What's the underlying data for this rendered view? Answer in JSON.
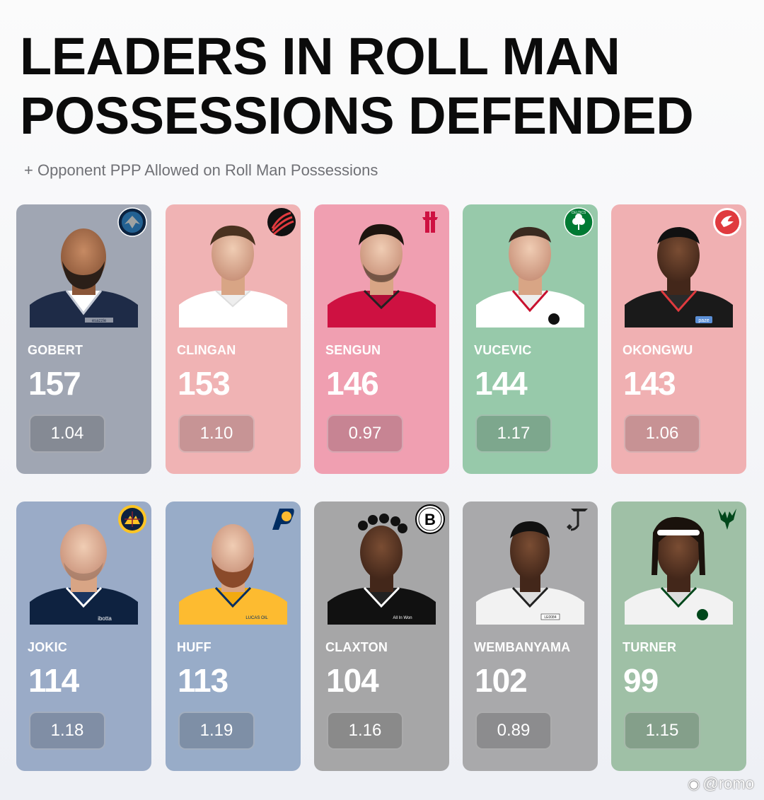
{
  "title": {
    "line1": "LEADERS IN ROLL MAN",
    "line2": "POSSESSIONS DEFENDED"
  },
  "subtitle": "+ Opponent PPP Allowed on Roll Man Possessions",
  "players": [
    {
      "name": "GOBERT",
      "possessions": "157",
      "ppp": "1.04",
      "team_logo": "timberwolves-logo",
      "card_color": "#a0a6b3",
      "jersey_color": "#1e2b47",
      "logo_color": "#236192"
    },
    {
      "name": "CLINGAN",
      "possessions": "153",
      "ppp": "1.10",
      "team_logo": "trail-blazers-logo",
      "card_color": "#f0b3b4",
      "jersey_color": "#ffffff",
      "logo_color": "#e03a3e"
    },
    {
      "name": "SENGUN",
      "possessions": "146",
      "ppp": "0.97",
      "team_logo": "rockets-logo",
      "card_color": "#f09fb1",
      "jersey_color": "#ce1141",
      "logo_color": "#ce1141"
    },
    {
      "name": "VUCEVIC",
      "possessions": "144",
      "ppp": "1.17",
      "team_logo": "celtics-logo",
      "card_color": "#97c9aa",
      "jersey_color": "#ffffff",
      "logo_color": "#007a33"
    },
    {
      "name": "OKONGWU",
      "possessions": "143",
      "ppp": "1.06",
      "team_logo": "hawks-logo",
      "card_color": "#f0b0b2",
      "jersey_color": "#1a1a1a",
      "logo_color": "#e03a3e"
    },
    {
      "name": "JOKIC",
      "possessions": "114",
      "ppp": "1.18",
      "team_logo": "nuggets-logo",
      "card_color": "#9aabc7",
      "jersey_color": "#0e2240",
      "logo_color": "#0e2240"
    },
    {
      "name": "HUFF",
      "possessions": "113",
      "ppp": "1.19",
      "team_logo": "pacers-logo",
      "card_color": "#98acc8",
      "jersey_color": "#fdbb30",
      "logo_color": "#002d62"
    },
    {
      "name": "CLAXTON",
      "possessions": "104",
      "ppp": "1.16",
      "team_logo": "nets-logo",
      "card_color": "#a6a6a7",
      "jersey_color": "#111111",
      "logo_color": "#000000"
    },
    {
      "name": "WEMBANYAMA",
      "possessions": "102",
      "ppp": "0.89",
      "team_logo": "spurs-logo",
      "card_color": "#a9a9ab",
      "jersey_color": "#f2f2f2",
      "logo_color": "#222222"
    },
    {
      "name": "TURNER",
      "possessions": "99",
      "ppp": "1.15",
      "team_logo": "bucks-logo",
      "card_color": "#9fc0a6",
      "jersey_color": "#f2f2f2",
      "logo_color": "#00471b"
    }
  ],
  "logo_text": {
    "celtics": "CELTICS",
    "nets": "B"
  },
  "jersey_text": {
    "gobert": "esazzle",
    "okongwu": "paze",
    "jokic": "ibotta",
    "huff": "LUCAS OIL",
    "claxton": "All In Won",
    "wembanyama": "LE0084"
  },
  "watermark": "@romo"
}
